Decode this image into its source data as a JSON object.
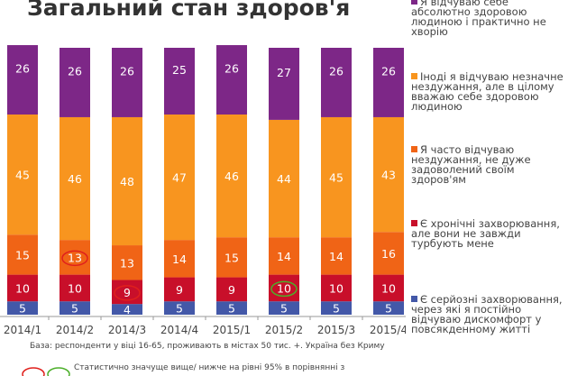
{
  "chart_data": {
    "type": "bar",
    "stacked": true,
    "title": "Загальний стан здоров'я",
    "categories": [
      "2014/1",
      "2014/2",
      "2014/3",
      "2014/4",
      "2015/1",
      "2015/2",
      "2015/3",
      "2015/4"
    ],
    "series": [
      {
        "name": "Є серйозні захворювання, через які я постійно відчуваю дискомфорт у повсякденному житті",
        "color": "#4358a8",
        "values": [
          5,
          5,
          4,
          5,
          5,
          5,
          5,
          5
        ]
      },
      {
        "name": "Є хронічні захворювання, але вони не завжди турбують мене",
        "color": "#c80f2a",
        "values": [
          10,
          10,
          9,
          9,
          9,
          10,
          10,
          10
        ]
      },
      {
        "name": "Я часто відчуваю нездужання, не дуже задоволений своїм здоров'ям",
        "color": "#f06416",
        "values": [
          15,
          13,
          13,
          14,
          15,
          14,
          14,
          16
        ]
      },
      {
        "name": "Іноді я відчуваю незначне нездужання, але в цілому вважаю себе здоровою людиною",
        "color": "#f8951f",
        "values": [
          45,
          46,
          48,
          47,
          46,
          44,
          45,
          43
        ]
      },
      {
        "name": "Я відчуваю себе абсолютно здоровою людиною і практично не хворію",
        "color": "#7d2787",
        "values": [
          26,
          26,
          26,
          25,
          26,
          27,
          26,
          26
        ]
      }
    ],
    "highlights": [
      {
        "category": "2014/2",
        "series": 2,
        "type": "higher",
        "color": "#e0201c"
      },
      {
        "category": "2014/3",
        "series": 1,
        "type": "higher",
        "color": "#e0201c"
      },
      {
        "category": "2015/2",
        "series": 1,
        "type": "lower",
        "color": "#4caf2a"
      }
    ],
    "legend_placement": "right",
    "grid": false
  },
  "notes": {
    "base": "База: респонденти у віці 16-65, проживають в містах 50 тис. +. Україна без Криму",
    "significance": "Статистично значуще вище/ нижче на рівні 95% в порівнянні з"
  }
}
